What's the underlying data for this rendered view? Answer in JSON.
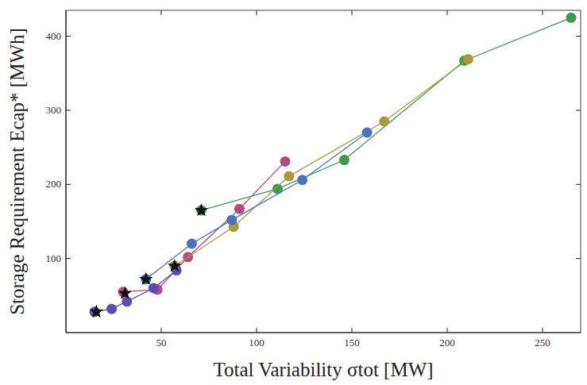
{
  "chart_data": {
    "type": "line",
    "xlabel": "Total Variability σtot [MW]",
    "ylabel": "Storage Requirement Ecap* [MWh]",
    "xlim": [
      0,
      270
    ],
    "ylim": [
      0,
      435
    ],
    "xticks": [
      50,
      100,
      150,
      200,
      250
    ],
    "yticks": [
      100,
      200,
      300,
      400
    ],
    "grid": false,
    "series": [
      {
        "color": "#3e9a50",
        "marker": "circle",
        "x": [
          71,
          111,
          146,
          209,
          265
        ],
        "values": [
          165,
          194,
          233,
          367,
          425
        ]
      },
      {
        "color": "#b24a83",
        "marker": "circle",
        "x": [
          30,
          48,
          64,
          91,
          115
        ],
        "values": [
          55,
          58,
          102,
          167,
          231
        ]
      },
      {
        "color": "#a99a3f",
        "marker": "circle",
        "x": [
          57,
          88,
          117,
          167,
          211
        ],
        "values": [
          90,
          143,
          211,
          285,
          369
        ]
      },
      {
        "color": "#4a72bd",
        "marker": "circle",
        "x": [
          42,
          66,
          87,
          124,
          158
        ],
        "values": [
          72,
          120,
          152,
          206,
          270
        ]
      },
      {
        "color": "#5a4fae",
        "marker": "circle",
        "x": [
          15,
          24,
          32,
          46,
          58
        ],
        "values": [
          28,
          32,
          42,
          60,
          84
        ]
      },
      {
        "type": "scatter",
        "color": "#111111",
        "marker": "star",
        "x": [
          16,
          31,
          42,
          57,
          71
        ],
        "values": [
          28,
          53,
          72,
          90,
          165
        ]
      }
    ]
  }
}
